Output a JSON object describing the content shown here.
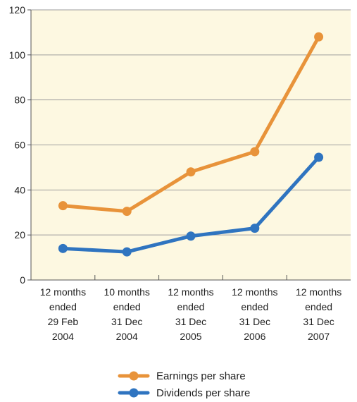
{
  "chart_data": {
    "type": "line",
    "categories": [
      [
        "12 months",
        "ended",
        "29 Feb",
        "2004"
      ],
      [
        "10 months",
        "ended",
        "31 Dec",
        "2004"
      ],
      [
        "12 months",
        "ended",
        "31 Dec",
        "2005"
      ],
      [
        "12 months",
        "ended",
        "31 Dec",
        "2006"
      ],
      [
        "12 months",
        "ended",
        "31 Dec",
        "2007"
      ]
    ],
    "series": [
      {
        "name": "Earnings per share",
        "values": [
          33,
          30.5,
          48,
          57,
          108
        ],
        "color": "#E8933A"
      },
      {
        "name": "Dividends per share",
        "values": [
          14,
          12.5,
          19.5,
          23,
          54.5
        ],
        "color": "#2F74C0"
      }
    ],
    "ylim": [
      0,
      120
    ],
    "yticks": [
      "0",
      "20",
      "40",
      "60",
      "80",
      "100",
      "120"
    ],
    "ytick_values": [
      0,
      20,
      40,
      60,
      80,
      100,
      120
    ],
    "xlabel": "",
    "ylabel": "",
    "title": "",
    "grid": {
      "horizontal": true,
      "vertical": false,
      "color": "#9E9E9E"
    },
    "plot_background": "#FDF8E1",
    "legend": {
      "position": "bottom-center"
    }
  }
}
